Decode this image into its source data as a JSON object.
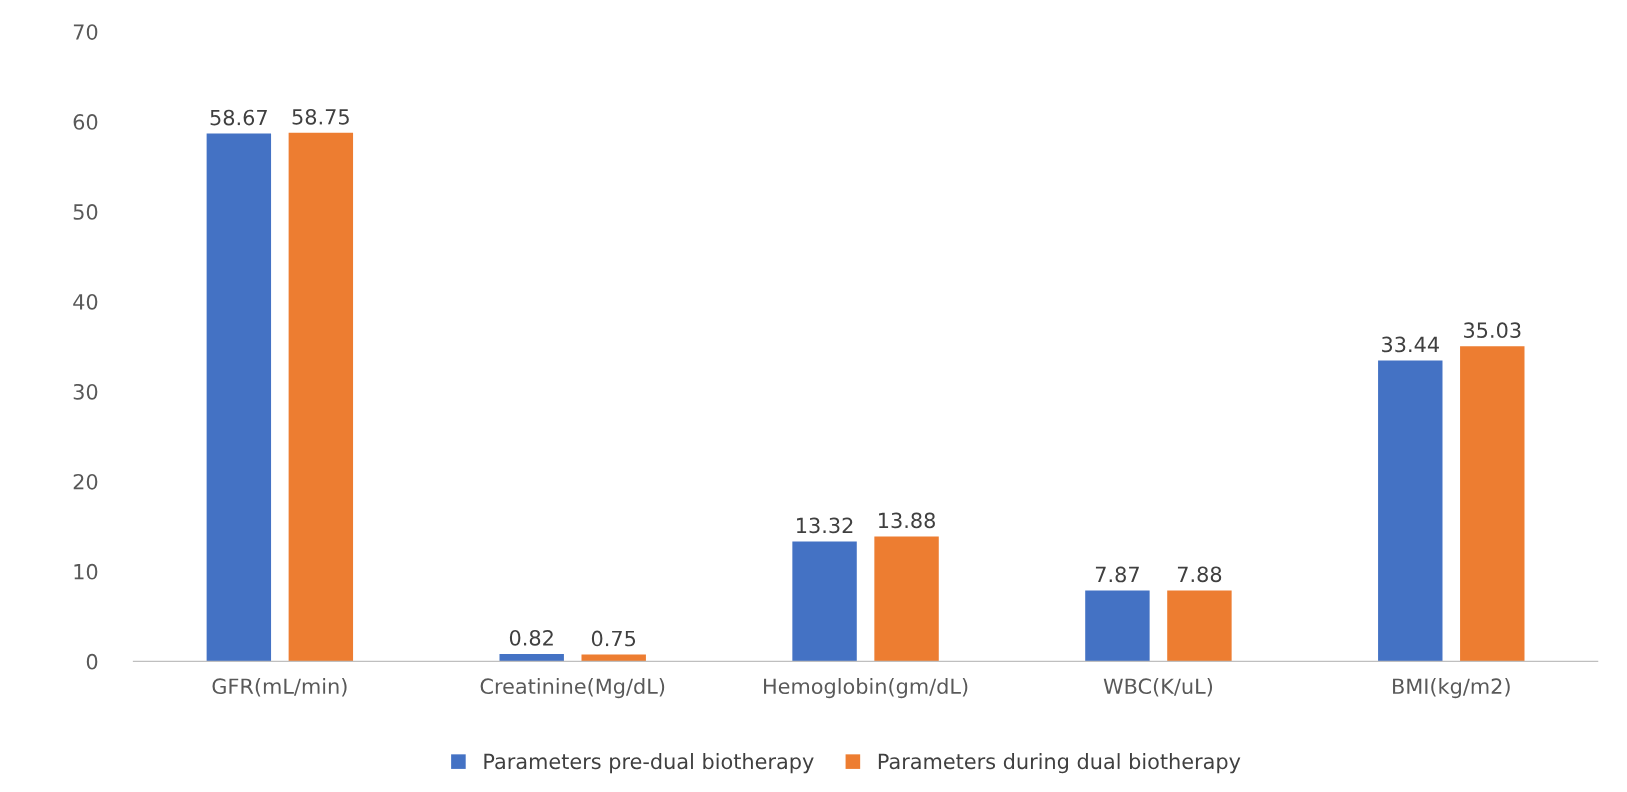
{
  "chart_data": {
    "type": "bar",
    "categories": [
      "GFR(mL/min)",
      "Creatinine(Mg/dL)",
      "Hemoglobin(gm/dL)",
      "WBC(K/uL)",
      "BMI(kg/m2)"
    ],
    "series": [
      {
        "name": "Parameters pre-dual biotherapy",
        "color": "#4472c4",
        "values": [
          58.67,
          0.82,
          13.32,
          7.87,
          33.44
        ]
      },
      {
        "name": "Parameters during dual biotherapy",
        "color": "#ed7d31",
        "values": [
          58.75,
          0.75,
          13.88,
          7.88,
          35.03
        ]
      }
    ],
    "ylim": [
      0,
      70
    ],
    "yticks": [
      0,
      10,
      20,
      30,
      40,
      50,
      60,
      70
    ],
    "data_labels": true,
    "grid": false,
    "legend": "bottom"
  }
}
